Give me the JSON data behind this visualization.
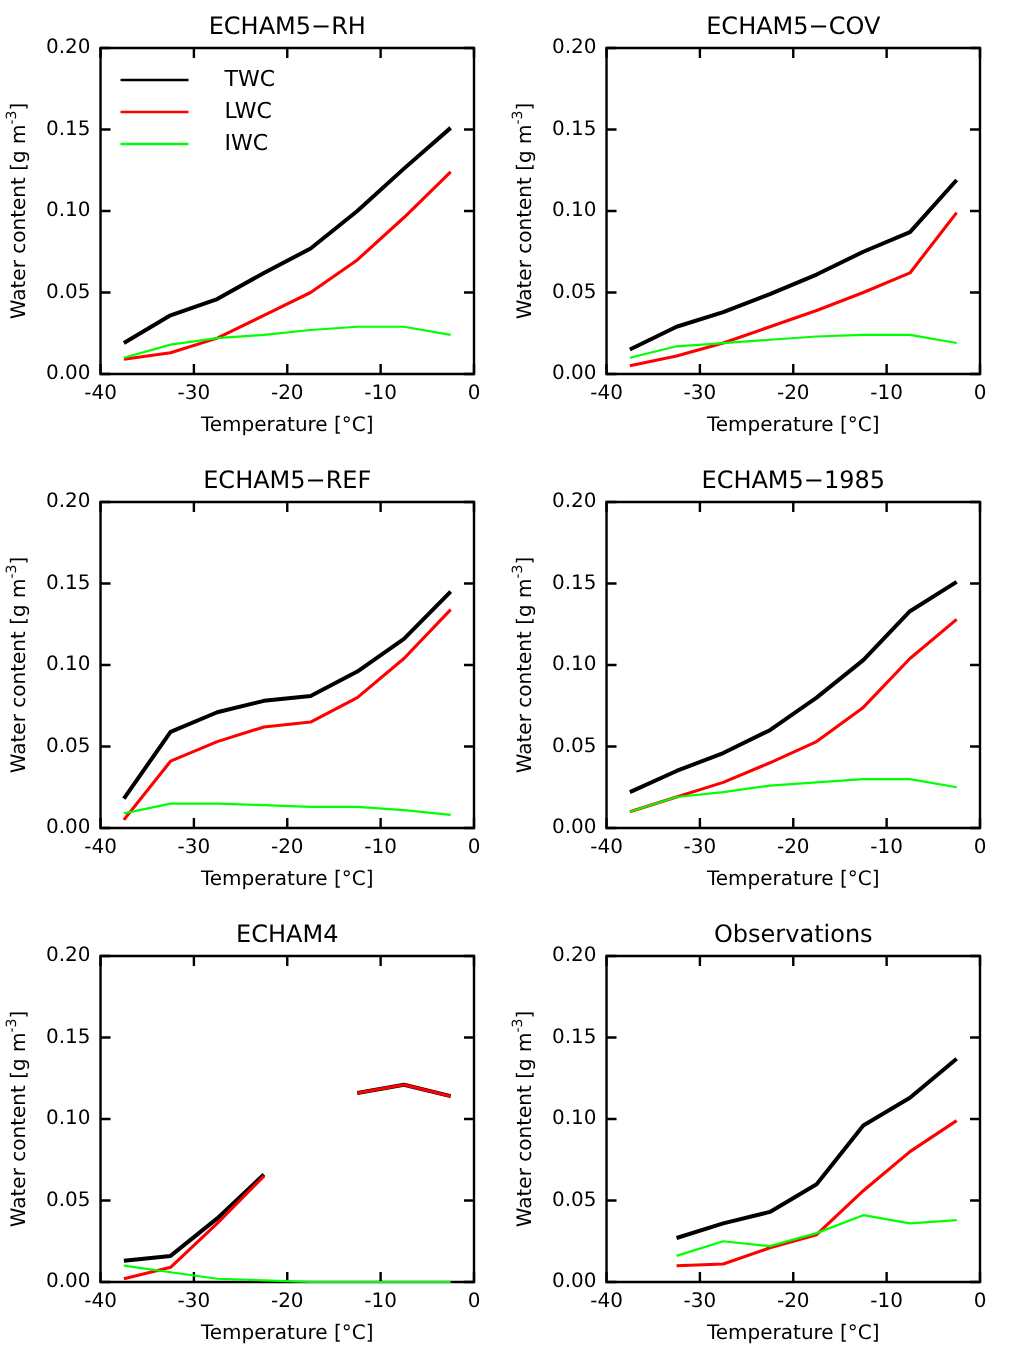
{
  "chart_data": [
    {
      "type": "line",
      "title": "ECHAM5−RH",
      "xlabel": "Temperature [°C]",
      "ylabel": "Water content [g m$^{-3}$]",
      "legend": "top left",
      "x": [
        -37.5,
        -32.5,
        -27.5,
        -22.5,
        -17.5,
        -12.5,
        -7.5,
        -2.5
      ],
      "series": [
        {
          "name": "TWC",
          "color": "#000000",
          "values": [
            0.019,
            0.036,
            0.046,
            0.062,
            0.077,
            0.1,
            0.126,
            0.151
          ]
        },
        {
          "name": "LWC",
          "color": "#ff0000",
          "values": [
            0.009,
            0.013,
            0.022,
            0.036,
            0.05,
            0.07,
            0.096,
            0.124
          ]
        },
        {
          "name": "IWC",
          "color": "#00ff00",
          "values": [
            0.01,
            0.018,
            0.022,
            0.024,
            0.027,
            0.029,
            0.029,
            0.024
          ]
        }
      ],
      "xlim": [
        -40,
        0
      ],
      "xticks": [
        -40,
        -30,
        -20,
        -10,
        0
      ],
      "ylim": [
        0,
        0.2
      ],
      "yticks": [
        {
          "value": 0,
          "label": "0.00"
        },
        {
          "value": 0.05,
          "label": "0.05"
        },
        {
          "value": 0.1,
          "label": "0.10"
        },
        {
          "value": 0.15,
          "label": "0.15"
        },
        {
          "value": 0.2,
          "label": "0.20"
        }
      ],
      "grid": false
    },
    {
      "type": "line",
      "title": "ECHAM5−COV",
      "xlabel": "Temperature [°C]",
      "ylabel": "Water content [g m$^{-3}$]",
      "x": [
        -37.5,
        -32.5,
        -27.5,
        -22.5,
        -17.5,
        -12.5,
        -7.5,
        -2.5
      ],
      "series": [
        {
          "color": "#000000",
          "values": [
            0.015,
            0.029,
            0.038,
            0.049,
            0.061,
            0.075,
            0.087,
            0.119
          ]
        },
        {
          "color": "#ff0000",
          "values": [
            0.005,
            0.011,
            0.019,
            0.029,
            0.039,
            0.05,
            0.062,
            0.099
          ]
        },
        {
          "color": "#00ff00",
          "values": [
            0.01,
            0.017,
            0.019,
            0.021,
            0.023,
            0.024,
            0.024,
            0.019
          ]
        }
      ],
      "xlim": [
        -40,
        0
      ],
      "xticks": [
        -40,
        -30,
        -20,
        -10,
        0
      ],
      "ylim": [
        0,
        0.2
      ],
      "yticks": [
        {
          "value": 0,
          "label": "0.00"
        },
        {
          "value": 0.05,
          "label": "0.05"
        },
        {
          "value": 0.1,
          "label": "0.10"
        },
        {
          "value": 0.15,
          "label": "0.15"
        },
        {
          "value": 0.2,
          "label": "0.20"
        }
      ],
      "grid": false
    },
    {
      "type": "line",
      "title": "ECHAM5−REF",
      "xlabel": "Temperature [°C]",
      "ylabel": "Water content [g m$^{-3}$]",
      "x": [
        -37.5,
        -32.5,
        -27.5,
        -22.5,
        -17.5,
        -12.5,
        -7.5,
        -2.5
      ],
      "series": [
        {
          "color": "#000000",
          "values": [
            0.018,
            0.059,
            0.071,
            0.078,
            0.081,
            0.096,
            0.116,
            0.145
          ]
        },
        {
          "color": "#ff0000",
          "values": [
            0.005,
            0.041,
            0.053,
            0.062,
            0.065,
            0.08,
            0.104,
            0.134
          ]
        },
        {
          "color": "#00ff00",
          "values": [
            0.009,
            0.015,
            0.015,
            0.014,
            0.013,
            0.013,
            0.011,
            0.008
          ]
        }
      ],
      "xlim": [
        -40,
        0
      ],
      "xticks": [
        -40,
        -30,
        -20,
        -10,
        0
      ],
      "ylim": [
        0,
        0.2
      ],
      "yticks": [
        {
          "value": 0,
          "label": "0.00"
        },
        {
          "value": 0.05,
          "label": "0.05"
        },
        {
          "value": 0.1,
          "label": "0.10"
        },
        {
          "value": 0.15,
          "label": "0.15"
        },
        {
          "value": 0.2,
          "label": "0.20"
        }
      ],
      "grid": false
    },
    {
      "type": "line",
      "title": "ECHAM5−1985",
      "xlabel": "Temperature [°C]",
      "ylabel": "Water content [g m$^{-3}$]",
      "x": [
        -37.5,
        -32.5,
        -27.5,
        -22.5,
        -17.5,
        -12.5,
        -7.5,
        -2.5
      ],
      "series": [
        {
          "color": "#000000",
          "values": [
            0.022,
            0.035,
            0.046,
            0.06,
            0.08,
            0.103,
            0.133,
            0.151
          ]
        },
        {
          "color": "#ff0000",
          "values": [
            0.01,
            0.019,
            0.028,
            0.04,
            0.053,
            0.074,
            0.104,
            0.128
          ]
        },
        {
          "color": "#00ff00",
          "values": [
            0.01,
            0.019,
            0.022,
            0.026,
            0.028,
            0.03,
            0.03,
            0.025
          ]
        }
      ],
      "xlim": [
        -40,
        0
      ],
      "xticks": [
        -40,
        -30,
        -20,
        -10,
        0
      ],
      "ylim": [
        0,
        0.2
      ],
      "yticks": [
        {
          "value": 0,
          "label": "0.00"
        },
        {
          "value": 0.05,
          "label": "0.05"
        },
        {
          "value": 0.1,
          "label": "0.10"
        },
        {
          "value": 0.15,
          "label": "0.15"
        },
        {
          "value": 0.2,
          "label": "0.20"
        }
      ],
      "grid": false
    },
    {
      "type": "line",
      "title": "ECHAM4",
      "xlabel": "Temperature [°C]",
      "ylabel": "Water content [g m$^{-3}$]",
      "x": [
        -37.5,
        -32.5,
        -27.5,
        -22.5,
        -17.5,
        -12.5,
        -7.5,
        -2.5
      ],
      "series": [
        {
          "color": "#000000",
          "values": [
            0.013,
            0.016,
            0.039,
            0.066,
            null,
            0.116,
            0.121,
            0.114
          ]
        },
        {
          "color": "#ff0000",
          "values": [
            0.002,
            0.009,
            0.036,
            0.065,
            null,
            0.116,
            0.121,
            0.114
          ]
        },
        {
          "color": "#00ff00",
          "values": [
            0.01,
            0.006,
            0.002,
            0.001,
            0.0,
            0.0,
            0.0,
            0.0
          ]
        }
      ],
      "xlim": [
        -40,
        0
      ],
      "xticks": [
        -40,
        -30,
        -20,
        -10,
        0
      ],
      "ylim": [
        0,
        0.2
      ],
      "yticks": [
        {
          "value": 0,
          "label": "0.00"
        },
        {
          "value": 0.05,
          "label": "0.05"
        },
        {
          "value": 0.1,
          "label": "0.10"
        },
        {
          "value": 0.15,
          "label": "0.15"
        },
        {
          "value": 0.2,
          "label": "0.20"
        }
      ],
      "grid": false
    },
    {
      "type": "line",
      "title": "Observations",
      "xlabel": "Temperature [°C]",
      "ylabel": "Water content [g m$^{-3}$]",
      "x": [
        -32.5,
        -27.5,
        -22.5,
        -17.5,
        -12.5,
        -7.5,
        -2.5
      ],
      "series": [
        {
          "color": "#000000",
          "values": [
            0.027,
            0.036,
            0.043,
            0.06,
            0.096,
            0.113,
            0.137
          ]
        },
        {
          "color": "#ff0000",
          "values": [
            0.01,
            0.011,
            0.021,
            0.029,
            0.056,
            0.08,
            0.099
          ]
        },
        {
          "color": "#00ff00",
          "values": [
            0.016,
            0.025,
            0.022,
            0.03,
            0.041,
            0.036,
            0.038
          ]
        }
      ],
      "xlim": [
        -40,
        0
      ],
      "xticks": [
        -40,
        -30,
        -20,
        -10,
        0
      ],
      "ylim": [
        0,
        0.2
      ],
      "yticks": [
        {
          "value": 0,
          "label": "0.00"
        },
        {
          "value": 0.05,
          "label": "0.05"
        },
        {
          "value": 0.1,
          "label": "0.10"
        },
        {
          "value": 0.15,
          "label": "0.15"
        },
        {
          "value": 0.2,
          "label": "0.20"
        }
      ],
      "grid": false
    }
  ]
}
